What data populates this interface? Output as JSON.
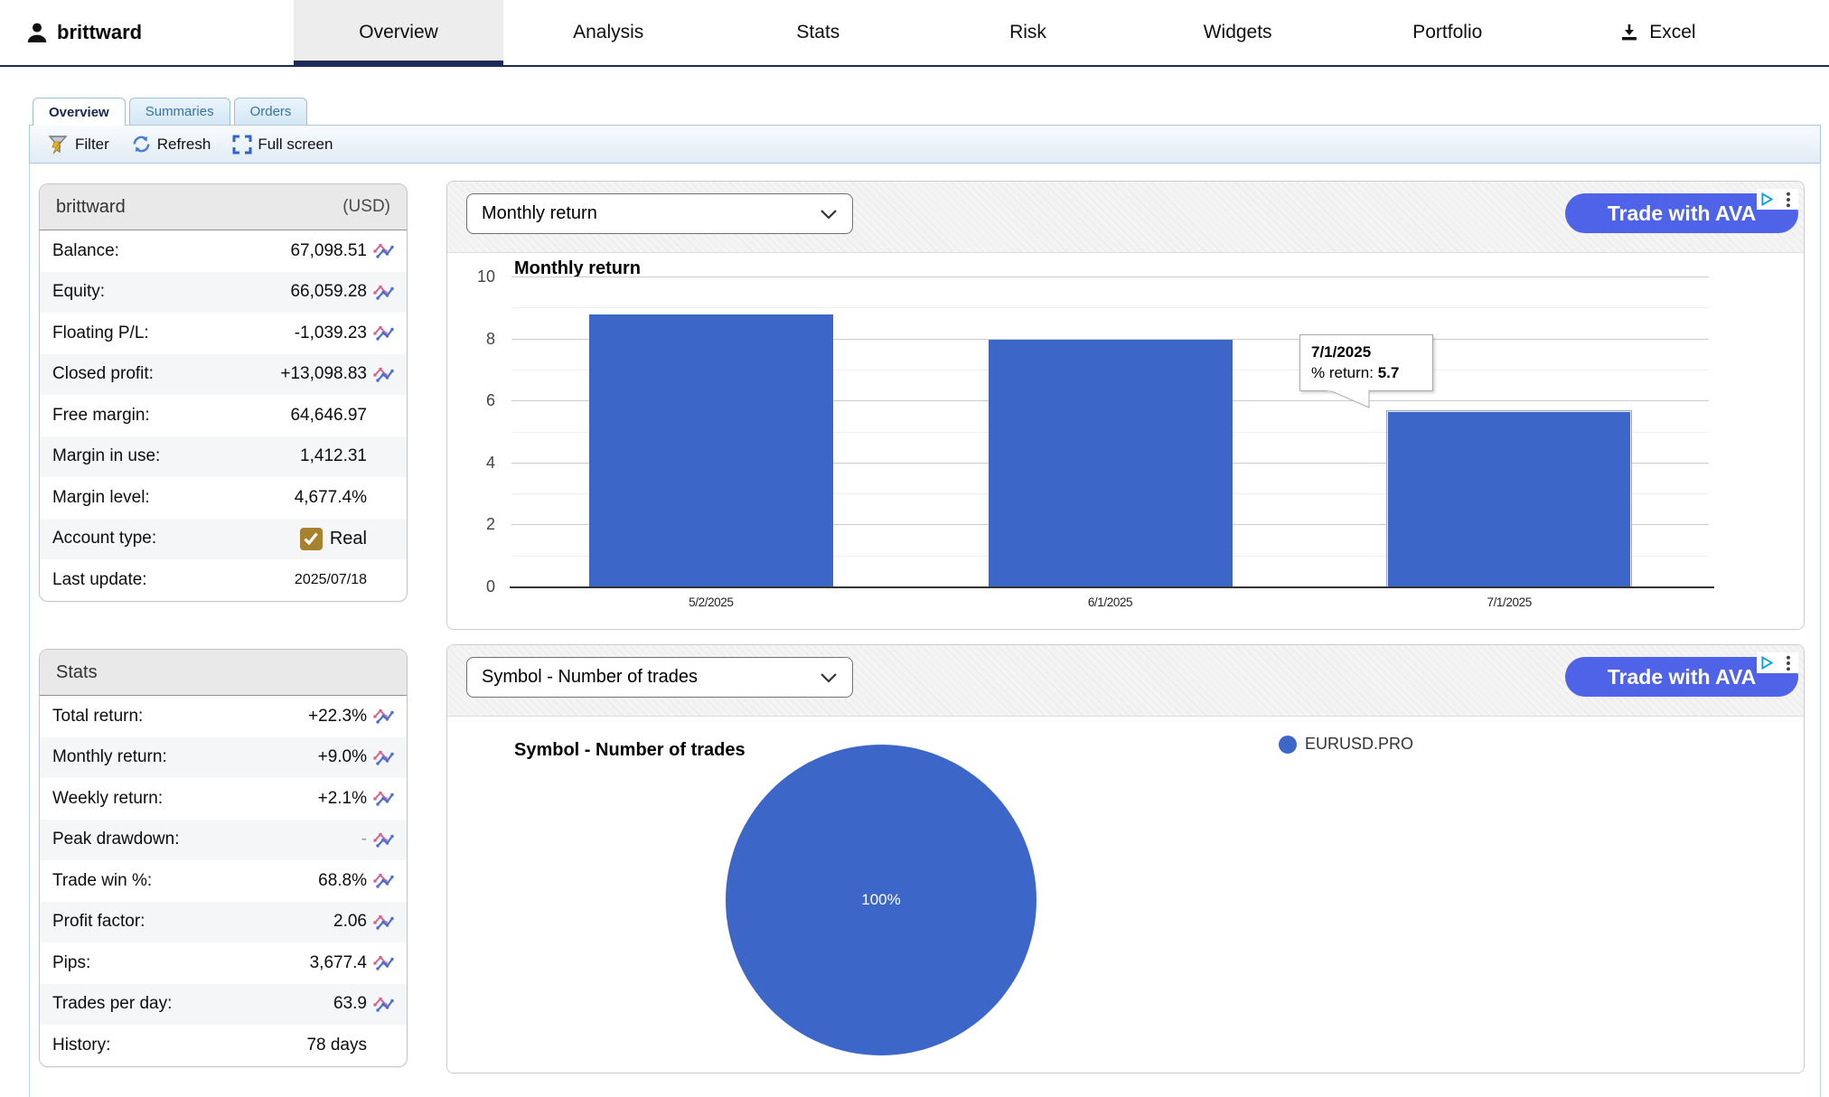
{
  "header": {
    "user": "brittward",
    "tabs": [
      {
        "label": "Overview",
        "active": true
      },
      {
        "label": "Analysis"
      },
      {
        "label": "Stats"
      },
      {
        "label": "Risk"
      },
      {
        "label": "Widgets"
      },
      {
        "label": "Portfolio"
      },
      {
        "label": "Excel"
      }
    ]
  },
  "subtabs": [
    {
      "label": "Overview",
      "active": true
    },
    {
      "label": "Summaries"
    },
    {
      "label": "Orders"
    }
  ],
  "toolbar": {
    "filter_label": "Filter",
    "refresh_label": "Refresh",
    "fullscreen_label": "Full screen"
  },
  "account": {
    "title": "brittward",
    "currency_label": "(USD)",
    "rows": [
      {
        "label": "Balance:",
        "value": "67,098.51",
        "chart_icon": true
      },
      {
        "label": "Equity:",
        "value": "66,059.28",
        "chart_icon": true
      },
      {
        "label": "Floating P/L:",
        "value": "-1,039.23",
        "chart_icon": true
      },
      {
        "label": "Closed profit:",
        "value": "+13,098.83",
        "chart_icon": true
      },
      {
        "label": "Free margin:",
        "value": "64,646.97"
      },
      {
        "label": "Margin in use:",
        "value": "1,412.31"
      },
      {
        "label": "Margin level:",
        "value": "4,677.4%"
      },
      {
        "label": "Account type:",
        "value": "Real",
        "checkbox": true
      },
      {
        "label": "Last update:",
        "value": "2025/07/18"
      }
    ]
  },
  "stats": {
    "title": "Stats",
    "rows": [
      {
        "label": "Total return:",
        "value": "+22.3%",
        "chart_icon": true
      },
      {
        "label": "Monthly return:",
        "value": "+9.0%",
        "chart_icon": true
      },
      {
        "label": "Weekly return:",
        "value": "+2.1%",
        "chart_icon": true
      },
      {
        "label": "Peak drawdown:",
        "value": "-",
        "chart_icon": true
      },
      {
        "label": "Trade win %:",
        "value": "68.8%",
        "chart_icon": true
      },
      {
        "label": "Profit factor:",
        "value": "2.06",
        "chart_icon": true
      },
      {
        "label": "Pips:",
        "value": "3,677.4",
        "chart_icon": true
      },
      {
        "label": "Trades per day:",
        "value": "63.9",
        "chart_icon": true
      },
      {
        "label": "History:",
        "value": "78 days"
      }
    ]
  },
  "bar_panel": {
    "dropdown_value": "Monthly return",
    "ad_label": "Trade with AVA"
  },
  "pie_panel": {
    "dropdown_value": "Symbol - Number of trades",
    "ad_label": "Trade with AVA"
  },
  "colors": {
    "series_blue": "#3d66c9",
    "ad_button_blue": "#4f63e8",
    "nav_underline_navy": "#1d2b5a",
    "checkbox_gold": "#a6822e"
  },
  "chart_data": [
    {
      "type": "bar",
      "title": "Monthly return",
      "categories": [
        "5/2/2025",
        "6/1/2025",
        "7/1/2025"
      ],
      "values": [
        8.8,
        8.0,
        5.7
      ],
      "xlabel": "",
      "ylabel": "% return",
      "ylim": [
        0,
        10
      ],
      "y_ticks": [
        0,
        2,
        4,
        6,
        8,
        10
      ],
      "grid": true,
      "legend_position": "none",
      "series_color": "#3d66c9",
      "tooltip": {
        "date": "7/1/2025",
        "label": "% return: ",
        "value": "5.7",
        "hover_index": 2
      }
    },
    {
      "type": "pie",
      "title": "Symbol - Number of trades",
      "slices": [
        {
          "label": "EURUSD.PRO",
          "value": 100,
          "display": "100%",
          "color": "#3d66c9"
        }
      ],
      "legend_position": "right"
    }
  ]
}
